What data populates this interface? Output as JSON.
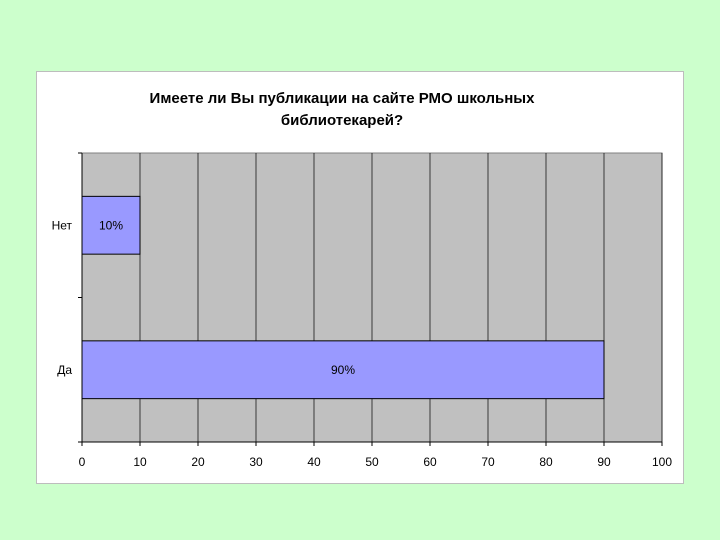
{
  "colors": {
    "background": "#ccffcc",
    "plot_area": "#c0c0c0",
    "bar_fill": "#9999ff",
    "bar_stroke": "#000000",
    "gridline": "#000000"
  },
  "chart_data": {
    "type": "bar",
    "orientation": "horizontal",
    "title_lines": [
      "Имеете ли Вы публикации на сайте РМО школьных",
      "библиотекарей?"
    ],
    "categories": [
      "Нет",
      "Да"
    ],
    "values": [
      10,
      90
    ],
    "data_labels": [
      "10%",
      "90%"
    ],
    "xlim": [
      0,
      100
    ],
    "x_ticks": [
      "0",
      "10",
      "20",
      "30",
      "40",
      "50",
      "60",
      "70",
      "80",
      "90",
      "100"
    ],
    "grid": "vertical",
    "legend": "none"
  }
}
